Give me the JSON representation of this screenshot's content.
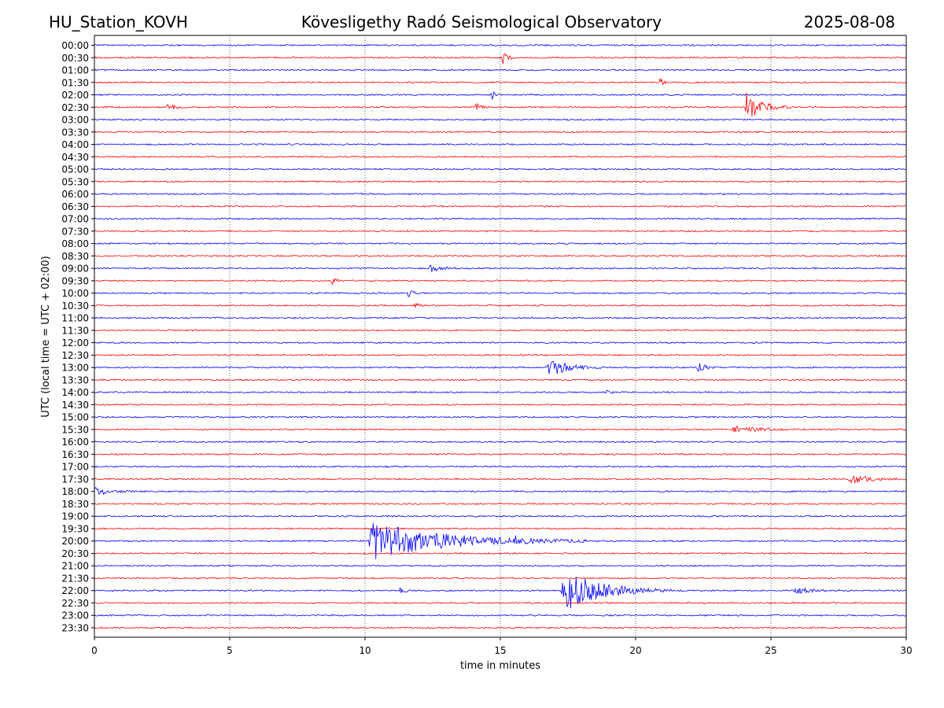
{
  "chart_data": {
    "type": "line",
    "title_left": "HU_Station_KOVH",
    "title": "Kövesligethy Radó Seismological Observatory",
    "title_right": "2025-08-08",
    "xlabel": "time in minutes",
    "ylabel": "UTC (local time = UTC + 02:00)",
    "xlim": [
      0,
      30
    ],
    "xticks": [
      0,
      5,
      10,
      15,
      20,
      25,
      30
    ],
    "x_grid": true,
    "row_labels": [
      "00:00",
      "00:30",
      "01:00",
      "01:30",
      "02:00",
      "02:30",
      "03:00",
      "03:30",
      "04:00",
      "04:30",
      "05:00",
      "05:30",
      "06:00",
      "06:30",
      "07:00",
      "07:30",
      "08:00",
      "08:30",
      "09:00",
      "09:30",
      "10:00",
      "10:30",
      "11:00",
      "11:30",
      "12:00",
      "12:30",
      "13:00",
      "13:30",
      "14:00",
      "14:30",
      "15:00",
      "15:30",
      "16:00",
      "16:30",
      "17:00",
      "17:30",
      "18:00",
      "18:30",
      "19:00",
      "19:30",
      "20:00",
      "20:30",
      "21:00",
      "21:30",
      "22:00",
      "22:30",
      "23:00",
      "23:30"
    ],
    "colors": [
      "#0000ff",
      "#ff0000"
    ],
    "events": [
      {
        "row": "00:30",
        "minute": 15.1,
        "amplitude": 0.5,
        "duration": 0.6
      },
      {
        "row": "01:30",
        "minute": 20.9,
        "amplitude": 0.35,
        "duration": 0.4
      },
      {
        "row": "02:00",
        "minute": 14.7,
        "amplitude": 0.35,
        "duration": 0.3
      },
      {
        "row": "02:30",
        "minute": 2.7,
        "amplitude": 0.3,
        "duration": 0.8
      },
      {
        "row": "02:30",
        "minute": 14.1,
        "amplitude": 0.3,
        "duration": 0.5
      },
      {
        "row": "02:30",
        "minute": 24.1,
        "amplitude": 1.3,
        "duration": 1.6
      },
      {
        "row": "09:00",
        "minute": 12.4,
        "amplitude": 0.3,
        "duration": 1.2
      },
      {
        "row": "09:30",
        "minute": 8.8,
        "amplitude": 0.35,
        "duration": 0.6
      },
      {
        "row": "10:00",
        "minute": 11.6,
        "amplitude": 0.3,
        "duration": 0.5
      },
      {
        "row": "10:30",
        "minute": 11.8,
        "amplitude": 0.25,
        "duration": 0.7
      },
      {
        "row": "12:30",
        "minute": 15.8,
        "amplitude": 0.25,
        "duration": 0.6
      },
      {
        "row": "13:00",
        "minute": 16.8,
        "amplitude": 0.75,
        "duration": 2.0
      },
      {
        "row": "13:00",
        "minute": 22.3,
        "amplitude": 0.4,
        "duration": 0.8
      },
      {
        "row": "14:00",
        "minute": 18.9,
        "amplitude": 0.25,
        "duration": 0.4
      },
      {
        "row": "15:30",
        "minute": 23.6,
        "amplitude": 0.25,
        "duration": 2.8
      },
      {
        "row": "17:30",
        "minute": 27.9,
        "amplitude": 0.4,
        "duration": 2.2
      },
      {
        "row": "18:00",
        "minute": 0.0,
        "amplitude": 0.3,
        "duration": 2.0
      },
      {
        "row": "20:00",
        "minute": 10.2,
        "amplitude": 1.6,
        "duration": 8.0
      },
      {
        "row": "20:00",
        "minute": 15.5,
        "amplitude": 0.3,
        "duration": 0.6
      },
      {
        "row": "22:00",
        "minute": 17.3,
        "amplitude": 1.8,
        "duration": 4.0
      },
      {
        "row": "22:00",
        "minute": 11.3,
        "amplitude": 0.25,
        "duration": 0.6
      },
      {
        "row": "22:00",
        "minute": 25.9,
        "amplitude": 0.25,
        "duration": 2.0
      }
    ]
  }
}
